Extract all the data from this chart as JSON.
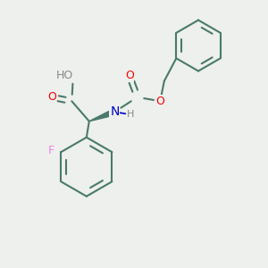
{
  "background_color": "#edf0ed",
  "bond_color": "#4a7a6a",
  "O_color": "#ff0000",
  "N_color": "#0000cc",
  "F_color": "#ee82ee",
  "H_color": "#888888",
  "lw": 1.5,
  "figsize": [
    3.0,
    3.0
  ],
  "dpi": 100,
  "xlim": [
    0,
    10
  ],
  "ylim": [
    0,
    10
  ],
  "font_size": 9
}
